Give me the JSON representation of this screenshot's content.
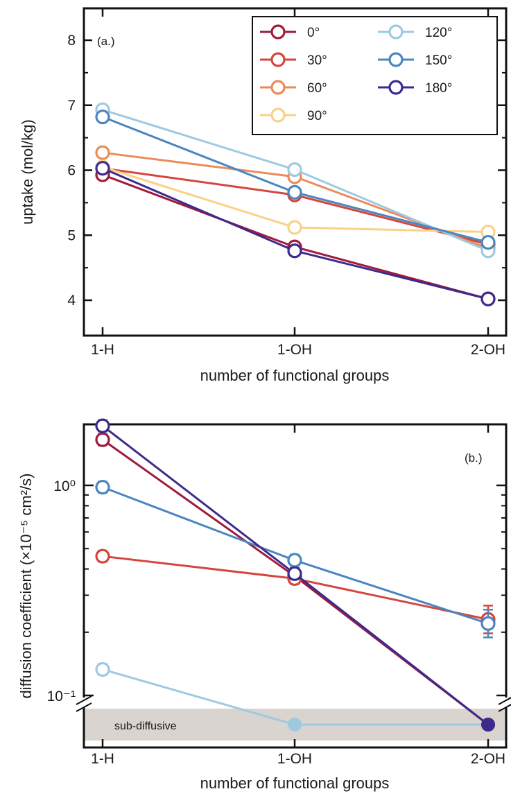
{
  "chart_data": [
    {
      "type": "line",
      "panel_label": "(a.)",
      "xlabel": "number of functional groups",
      "ylabel": "uptake (mol/kg)",
      "categories": [
        "1-H",
        "1-OH",
        "2-OH"
      ],
      "ylim": [
        3.5,
        8.5
      ],
      "yticks": [
        4,
        5,
        6,
        7,
        8
      ],
      "ytick_labels": [
        "4",
        "5",
        "6",
        "7",
        "8"
      ],
      "legend_position": "top-right",
      "grid": false,
      "series": [
        {
          "name": "0°",
          "color": "#9e1b3c",
          "values": [
            5.93,
            4.82,
            4.02
          ]
        },
        {
          "name": "30°",
          "color": "#d6453d",
          "values": [
            6.03,
            5.62,
            4.86
          ]
        },
        {
          "name": "60°",
          "color": "#ec8a5a",
          "values": [
            6.27,
            5.9,
            4.8
          ]
        },
        {
          "name": "90°",
          "color": "#f9d188",
          "values": [
            6.05,
            5.12,
            5.05
          ]
        },
        {
          "name": "120°",
          "color": "#9ecae1",
          "values": [
            6.93,
            6.01,
            4.76
          ]
        },
        {
          "name": "150°",
          "color": "#4a86bf",
          "values": [
            6.82,
            5.66,
            4.89
          ]
        },
        {
          "name": "180°",
          "color": "#3d2a8c",
          "values": [
            6.03,
            4.76,
            4.02
          ]
        }
      ]
    },
    {
      "type": "line",
      "panel_label": "(b.)",
      "xlabel": "number of functional groups",
      "ylabel": "diffusion coefficient (×10⁻⁵ cm²/s)",
      "categories": [
        "1-H",
        "1-OH",
        "2-OH"
      ],
      "yscale": "log",
      "ylim": [
        0.06,
        2.4
      ],
      "ytick_labels": [
        "10⁰",
        "10⁻¹"
      ],
      "band_label": "sub-diffusive",
      "grid": false,
      "series": [
        {
          "name": "0°",
          "color": "#9e1b3c",
          "values": [
            1.65,
            0.37,
            "sub-diffusive"
          ]
        },
        {
          "name": "30°",
          "color": "#d6453d",
          "values": [
            0.46,
            0.36,
            0.23
          ]
        },
        {
          "name": "120°",
          "color": "#9ecae1",
          "values": [
            0.133,
            "sub-diffusive",
            "sub-diffusive"
          ]
        },
        {
          "name": "150°",
          "color": "#4a86bf",
          "values": [
            0.98,
            0.44,
            0.22
          ]
        },
        {
          "name": "180°",
          "color": "#3d2a8c",
          "values": [
            1.92,
            0.38,
            "sub-diffusive"
          ]
        }
      ]
    }
  ]
}
